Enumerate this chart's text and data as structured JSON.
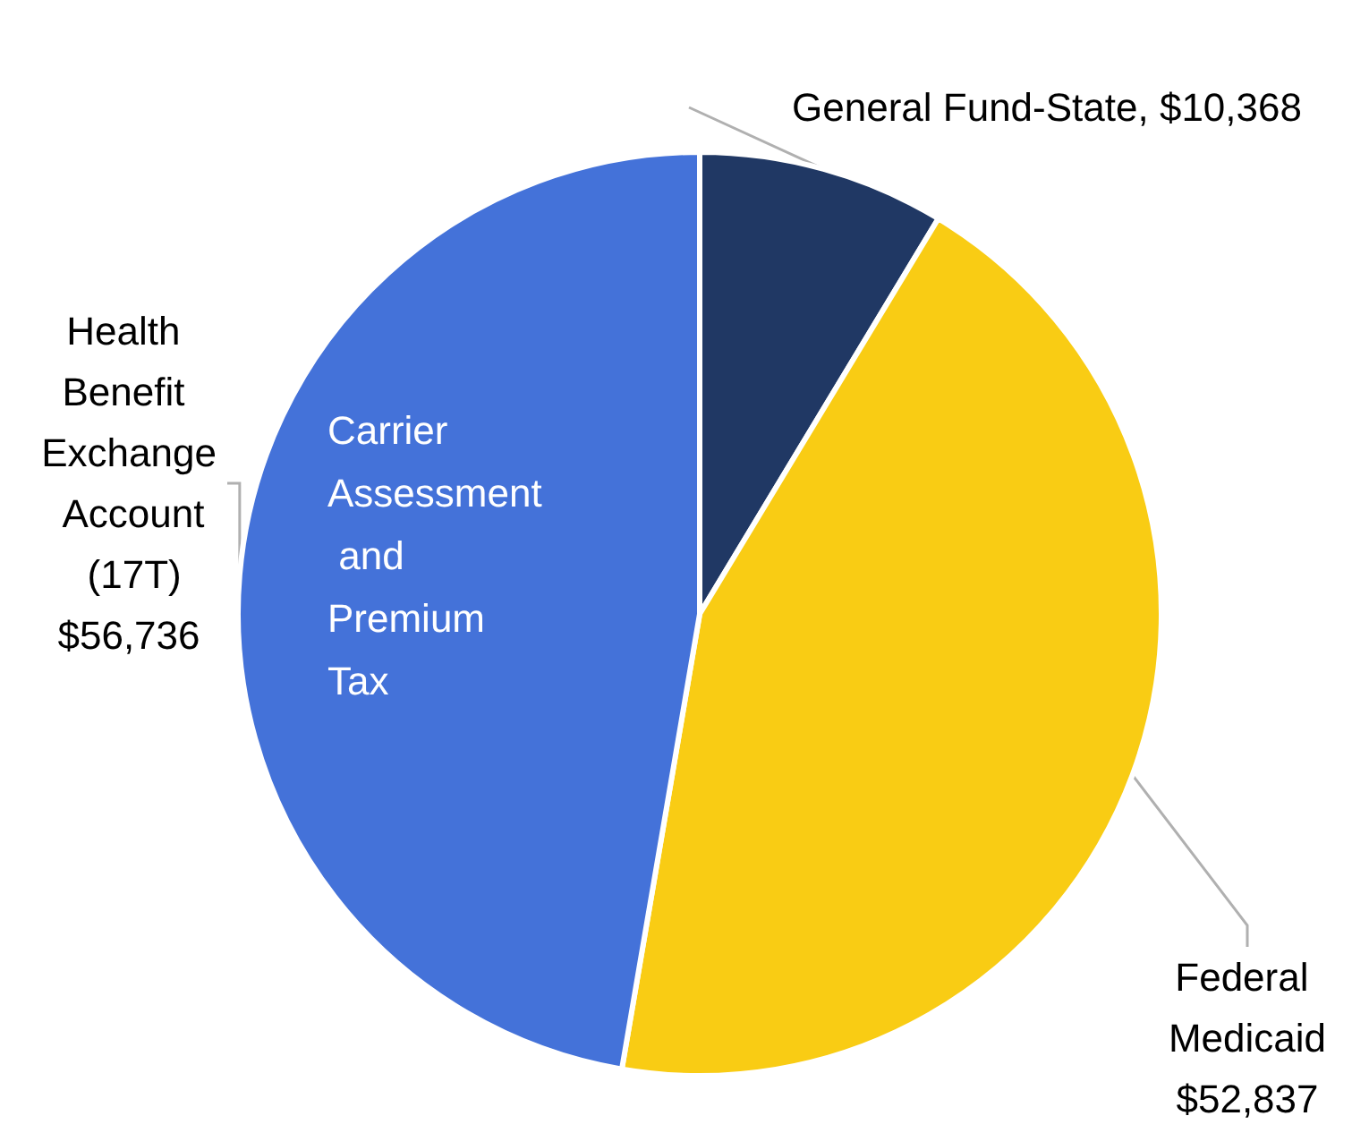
{
  "chart_data": {
    "type": "pie",
    "categories": [
      "General Fund-State",
      "Federal Medicaid",
      "Health Benefit Exchange Account (17T)"
    ],
    "values": [
      10368,
      52837,
      56736
    ],
    "value_labels": [
      "$10,368",
      "$52,837",
      "$56,736"
    ],
    "colors": [
      "#203864",
      "#f9cc14",
      "#4472d9"
    ],
    "annotations": [
      "Carrier Assessment and Premium Tax"
    ],
    "legend": false
  }
}
